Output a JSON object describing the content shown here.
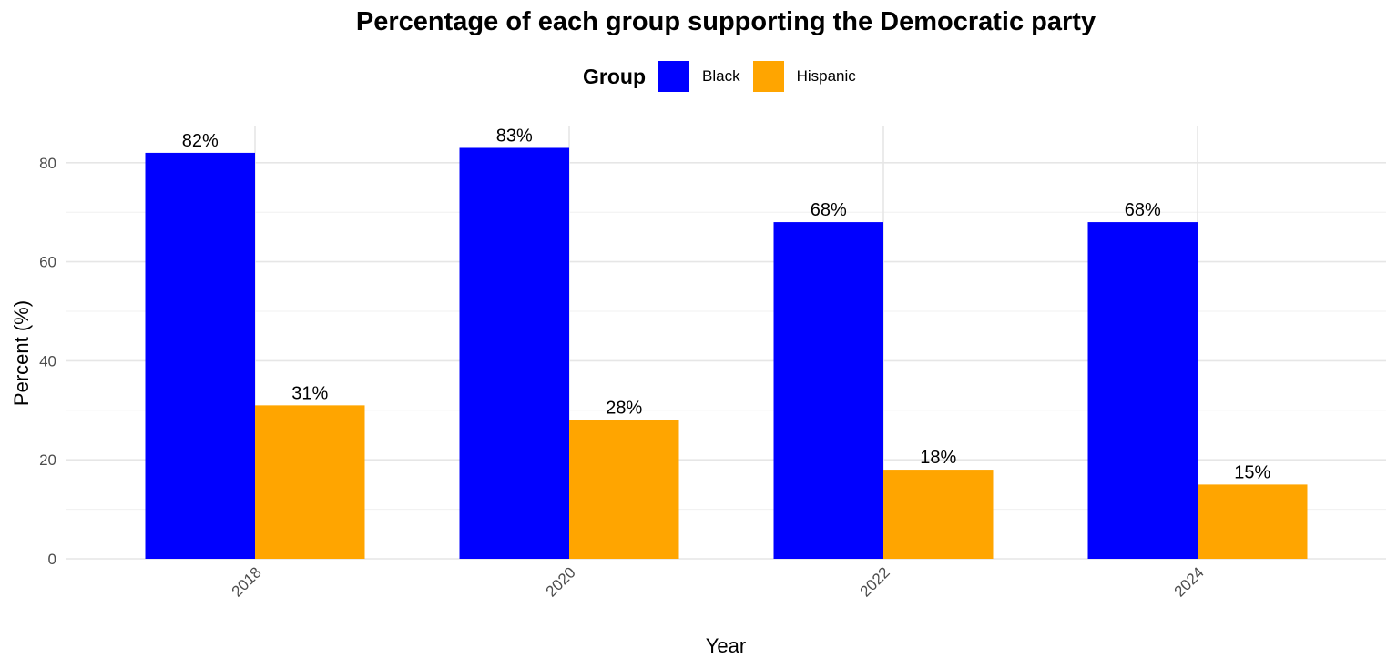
{
  "chart_data": {
    "type": "bar",
    "title": "Percentage of each group supporting the Democratic party",
    "xlabel": "Year",
    "ylabel": "Percent (%)",
    "categories": [
      "2018",
      "2020",
      "2022",
      "2024"
    ],
    "series": [
      {
        "name": "Black",
        "color": "#0000ff",
        "values": [
          82,
          83,
          68,
          68
        ],
        "labels": [
          "82%",
          "83%",
          "68%",
          "68%"
        ]
      },
      {
        "name": "Hispanic",
        "color": "#ffa500",
        "values": [
          31,
          28,
          18,
          15
        ],
        "labels": [
          "31%",
          "28%",
          "18%",
          "15%"
        ]
      }
    ],
    "ylim": [
      0,
      87.5
    ],
    "yticks": [
      0,
      20,
      40,
      60,
      80
    ],
    "grid": true,
    "legend": {
      "title": "Group",
      "position": "top"
    }
  }
}
